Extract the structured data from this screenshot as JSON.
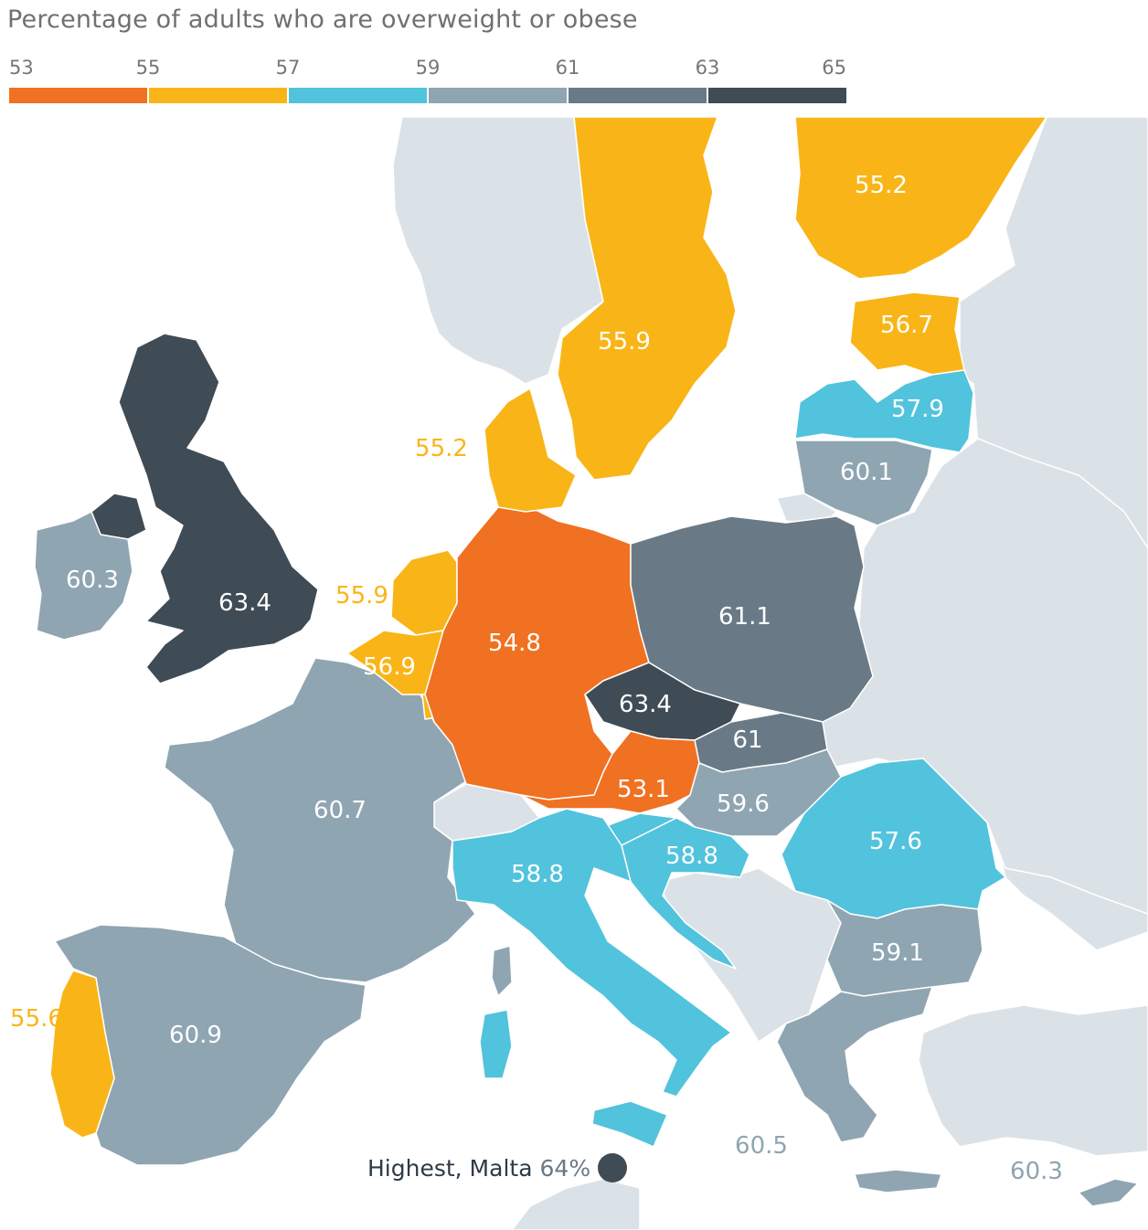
{
  "title": "Percentage of adults who are overweight or obese",
  "legend": {
    "ticks": [
      "53",
      "55",
      "57",
      "59",
      "61",
      "63",
      "65"
    ],
    "bins": [
      {
        "from": 53,
        "to": 55,
        "color": "#f07122"
      },
      {
        "from": 55,
        "to": 57,
        "color": "#f9b517"
      },
      {
        "from": 57,
        "to": 59,
        "color": "#52c3dc"
      },
      {
        "from": 59,
        "to": 61,
        "color": "#8fa5b1"
      },
      {
        "from": 61,
        "to": 63,
        "color": "#697a86"
      },
      {
        "from": 63,
        "to": 65,
        "color": "#3f4b55"
      }
    ]
  },
  "colors": {
    "sea": "#ffffff",
    "no_data": "#dbe2e7",
    "border": "#ffffff"
  },
  "values": {
    "uk": "63.4",
    "ireland": "60.3",
    "france": "60.7",
    "spain": "60.9",
    "portugal": "55.6",
    "belgium": "56.9",
    "netherlands": "55.9",
    "germany": "54.8",
    "denmark": "55.2",
    "sweden": "55.9",
    "finland": "55.2",
    "estonia": "56.7",
    "latvia": "57.9",
    "lithuania": "60.1",
    "poland": "61.1",
    "czechia": "63.4",
    "slovakia": "61",
    "austria": "53.1",
    "hungary": "59.6",
    "romania": "57.6",
    "bulgaria": "59.1",
    "italy": "58.8",
    "croatia": "58.8",
    "greece": "60.5",
    "cyprus": "60.3"
  },
  "malta_note": {
    "label": "Highest, Malta",
    "value": "64%"
  }
}
